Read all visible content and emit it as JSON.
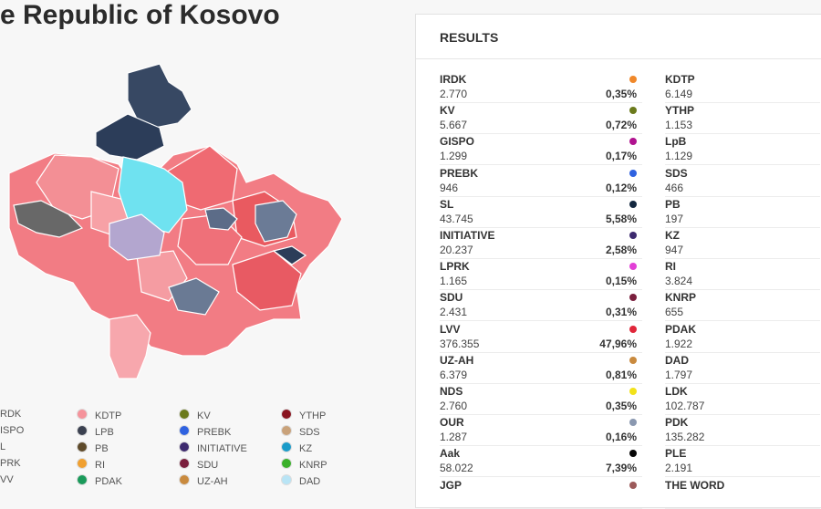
{
  "title": "e Republic of Kosovo",
  "results": {
    "heading": "RESULTS",
    "left": [
      {
        "name": "IRDK",
        "votes": "2.770",
        "share": "0,35%",
        "color": "#f0882a"
      },
      {
        "name": "KV",
        "votes": "5.667",
        "share": "0,72%",
        "color": "#6b7a1c"
      },
      {
        "name": "GISPO",
        "votes": "1.299",
        "share": "0,17%",
        "color": "#b0128f"
      },
      {
        "name": "PREBK",
        "votes": "946",
        "share": "0,12%",
        "color": "#2f62e0"
      },
      {
        "name": "SL",
        "votes": "43.745",
        "share": "5,58%",
        "color": "#13273f"
      },
      {
        "name": "INITIATIVE",
        "votes": "20.237",
        "share": "2,58%",
        "color": "#3d2a6e"
      },
      {
        "name": "LPRK",
        "votes": "1.165",
        "share": "0,15%",
        "color": "#e23fd6"
      },
      {
        "name": "SDU",
        "votes": "2.431",
        "share": "0,31%",
        "color": "#7a1f3d"
      },
      {
        "name": "LVV",
        "votes": "376.355",
        "share": "47,96%",
        "color": "#e0263a"
      },
      {
        "name": "UZ-AH",
        "votes": "6.379",
        "share": "0,81%",
        "color": "#c98a3e"
      },
      {
        "name": "NDS",
        "votes": "2.760",
        "share": "0,35%",
        "color": "#f2e21a"
      },
      {
        "name": "OUR",
        "votes": "1.287",
        "share": "0,16%",
        "color": "#8a98b0"
      },
      {
        "name": "Aak",
        "votes": "58.022",
        "share": "7,39%",
        "color": "#050505"
      },
      {
        "name": "JGP",
        "color": "#9c5a5a"
      }
    ],
    "right": [
      {
        "name": "KDTP",
        "votes": "6.149"
      },
      {
        "name": "YTHP",
        "votes": "1.153"
      },
      {
        "name": "LpB",
        "votes": "1.129"
      },
      {
        "name": "SDS",
        "votes": "466"
      },
      {
        "name": "PB",
        "votes": "197"
      },
      {
        "name": "KZ",
        "votes": "947"
      },
      {
        "name": "RI",
        "votes": "3.824"
      },
      {
        "name": "KNRP",
        "votes": "655"
      },
      {
        "name": "PDAK",
        "votes": "1.922"
      },
      {
        "name": "DAD",
        "votes": "1.797"
      },
      {
        "name": "LDK",
        "votes": "102.787"
      },
      {
        "name": "PDK",
        "votes": "135.282"
      },
      {
        "name": "PLE",
        "votes": "2.191"
      },
      {
        "name": "THE WORD"
      }
    ]
  },
  "legend": [
    {
      "label": "RDK"
    },
    {
      "label": "KDTP",
      "color": "#f5939b"
    },
    {
      "label": "KV",
      "color": "#6b7a1c"
    },
    {
      "label": "YTHP",
      "color": "#8a1420"
    },
    {
      "label": "ISPO"
    },
    {
      "label": "LPB",
      "color": "#3b4150"
    },
    {
      "label": "PREBK",
      "color": "#2f62e0"
    },
    {
      "label": "SDS",
      "color": "#c9a27a"
    },
    {
      "label": "L"
    },
    {
      "label": "PB",
      "color": "#5e4a2a"
    },
    {
      "label": "INITIATIVE",
      "color": "#3d2a6e"
    },
    {
      "label": "KZ",
      "color": "#1a9bc9"
    },
    {
      "label": "PRK"
    },
    {
      "label": "RI",
      "color": "#f0a030"
    },
    {
      "label": "SDU",
      "color": "#7a1f3d"
    },
    {
      "label": "KNRP",
      "color": "#3ab02a"
    },
    {
      "label": "VV"
    },
    {
      "label": "PDAK",
      "color": "#1a9a5a"
    },
    {
      "label": "UZ-AH",
      "color": "#c98a3e"
    },
    {
      "label": "DAD",
      "color": "#b8e4f5"
    }
  ]
}
